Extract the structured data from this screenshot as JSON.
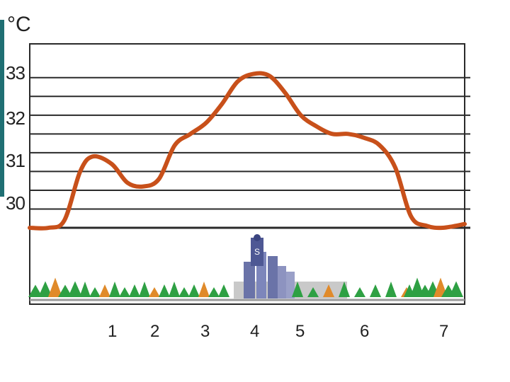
{
  "colors": {
    "curve": "#c8501a",
    "grid": "#2a2a2a",
    "tree_green": "#2ea043",
    "tree_orange": "#e08a2a",
    "building": "#6a73a8",
    "accent": "#1f6f73"
  },
  "chart_data": {
    "type": "line",
    "ylabel": "°C",
    "xlabel": "",
    "title": "",
    "y_ticks": [
      "30",
      "31",
      "32",
      "33"
    ],
    "y_tick_values": [
      30,
      31,
      32,
      33
    ],
    "ylim": [
      29.0,
      33.9
    ],
    "x_ticks": [
      "1",
      "2",
      "3",
      "4",
      "5",
      "6",
      "7"
    ],
    "x_tick_values": [
      1,
      2,
      3,
      4,
      5,
      6,
      7
    ],
    "xlim": [
      0.2,
      7.1
    ],
    "grid": true,
    "series": [
      {
        "name": "",
        "x": [
          0.2,
          0.5,
          0.75,
          1.0,
          1.2,
          1.5,
          1.75,
          2.0,
          2.25,
          2.5,
          2.75,
          3.0,
          3.25,
          3.5,
          3.75,
          4.0,
          4.25,
          4.5,
          4.75,
          5.0,
          5.25,
          5.5,
          5.75,
          6.0,
          6.25,
          6.5,
          6.75,
          7.1
        ],
        "y": [
          29.0,
          29.0,
          29.2,
          30.5,
          30.9,
          30.7,
          30.2,
          30.1,
          30.3,
          31.2,
          31.5,
          31.8,
          32.3,
          32.9,
          33.1,
          33.05,
          32.6,
          32.0,
          31.7,
          31.5,
          31.5,
          31.4,
          31.2,
          30.6,
          29.3,
          29.05,
          29.0,
          29.1
        ]
      }
    ],
    "landscape_label": "S"
  }
}
